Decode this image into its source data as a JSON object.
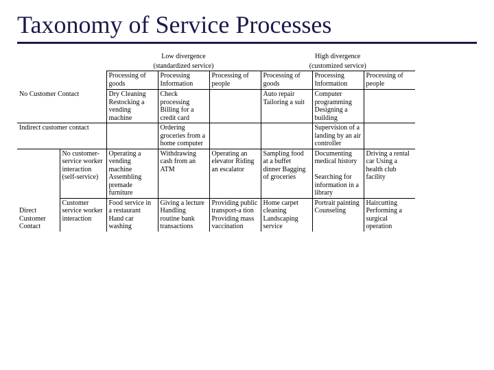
{
  "title": "Taxonomy of Service Processes",
  "headers": {
    "low_div": "Low divergence",
    "low_sub": "(standardized service)",
    "high_div": "High divergence",
    "high_sub": "(customized service)",
    "proc_goods": "Processing of goods",
    "proc_info": "Processing Information",
    "proc_people": "Processing of people"
  },
  "row_labels": {
    "no_contact": "No Customer Contact",
    "indirect": "Indirect customer contact",
    "direct": "Direct Customer Contact",
    "no_worker": "No customer-service worker interaction (self-service)",
    "worker": "Customer service worker interaction"
  },
  "cells": {
    "r1_lg": "Dry Cleaning Restocking a vending machine",
    "r1_li": "Check processing Billing for a credit card",
    "r1_lp": "",
    "r1_hg": "Auto repair Tailoring a suit",
    "r1_hi": "Computer programming Designing a building",
    "r1_hp": "",
    "r2_lg": "",
    "r2_li": "Ordering groceries from a home computer",
    "r2_lp": "",
    "r2_hg": "",
    "r2_hi": "Supervision of a landing by an air controller",
    "r2_hp": "",
    "r3_lg": "Operating a vending machine Assembling premade furniture",
    "r3_li": "Withdrawing cash from an ATM",
    "r3_lp": "Operating an elevator Riding an escalator",
    "r3_hg": "Sampling food at a buffet dinner Bagging of groceries",
    "r3_hi": "Documenting medical history\n\nSearching for information in a library",
    "r3_hp": "Driving a rental car Using a health club facility",
    "r4_lg": "Food service in a restaurant Hand car washing",
    "r4_li": "Giving a lecture Handling routine bank transactions",
    "r4_lp": "Providing public transport-a tion Providing mass vaccination",
    "r4_hg": "Home carpet cleaning Landscaping service",
    "r4_hi": "Portrait painting Counseling",
    "r4_hp": "Haircutting Performing a surgical operation"
  }
}
